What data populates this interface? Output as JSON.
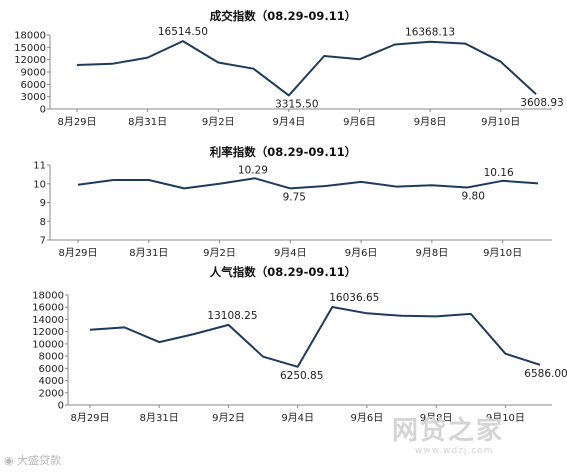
{
  "chart_data": [
    {
      "type": "line",
      "title": "成交指数（08.29-09.11）",
      "xlabel": "",
      "ylabel": "",
      "x_tick_labels": [
        "8月29日",
        "8月31日",
        "9月2日",
        "9月4日",
        "9月6日",
        "9月8日",
        "9月10日"
      ],
      "y_tick_labels": [
        "0",
        "3000",
        "6000",
        "9000",
        "12000",
        "15000",
        "18000"
      ],
      "ylim": [
        0,
        18000
      ],
      "grid": false,
      "color": "#1f3b5c",
      "series": [
        {
          "values": [
            10700,
            11000,
            12500,
            16514.5,
            11300,
            9800,
            3315.5,
            12900,
            12100,
            15700,
            16368.13,
            15900,
            11500,
            3608.93
          ]
        }
      ],
      "data_labels": [
        {
          "index": 3,
          "text": "16514.50"
        },
        {
          "index": 6,
          "text": "3315.50"
        },
        {
          "index": 10,
          "text": "16368.13"
        },
        {
          "index": 13,
          "text": "3608.93"
        }
      ]
    },
    {
      "type": "line",
      "title": "利率指数（08.29-09.11）",
      "xlabel": "",
      "ylabel": "",
      "x_tick_labels": [
        "8月29日",
        "8月31日",
        "9月2日",
        "9月4日",
        "9月6日",
        "9月8日",
        "9月10日"
      ],
      "y_tick_labels": [
        "7",
        "8",
        "9",
        "10",
        "11"
      ],
      "ylim": [
        7,
        11
      ],
      "grid": false,
      "color": "#1f3b5c",
      "series": [
        {
          "values": [
            9.95,
            10.2,
            10.2,
            9.75,
            10.0,
            10.29,
            9.75,
            9.88,
            10.1,
            9.85,
            9.92,
            9.8,
            10.16,
            10.02
          ]
        }
      ],
      "data_labels": [
        {
          "index": 5,
          "text": "10.29"
        },
        {
          "index": 6,
          "text": "9.75"
        },
        {
          "index": 11,
          "text": "9.80"
        },
        {
          "index": 12,
          "text": "10.16"
        }
      ]
    },
    {
      "type": "line",
      "title": "人气指数（08.29-09.11）",
      "xlabel": "",
      "ylabel": "",
      "x_tick_labels": [
        "8月29日",
        "8月31日",
        "9月2日",
        "9月4日",
        "9月6日",
        "9月8日",
        "9月10日"
      ],
      "y_tick_labels": [
        "0",
        "2000",
        "4000",
        "6000",
        "8000",
        "10000",
        "12000",
        "14000",
        "16000",
        "18000"
      ],
      "ylim": [
        0,
        18000
      ],
      "grid": false,
      "color": "#1f3b5c",
      "series": [
        {
          "values": [
            12300,
            12700,
            10300,
            11600,
            13108.25,
            7900,
            6250.85,
            16036.65,
            15000,
            14600,
            14500,
            14900,
            8400,
            6586.0
          ]
        }
      ],
      "data_labels": [
        {
          "index": 4,
          "text": "13108.25"
        },
        {
          "index": 6,
          "text": "6250.85"
        },
        {
          "index": 7,
          "text": "16036.65"
        },
        {
          "index": 13,
          "text": "6586.00"
        }
      ]
    }
  ],
  "watermark": {
    "left_text": "大盛贷款",
    "right_text": "网贷之家",
    "right_sub": "www.wdzj.com"
  }
}
